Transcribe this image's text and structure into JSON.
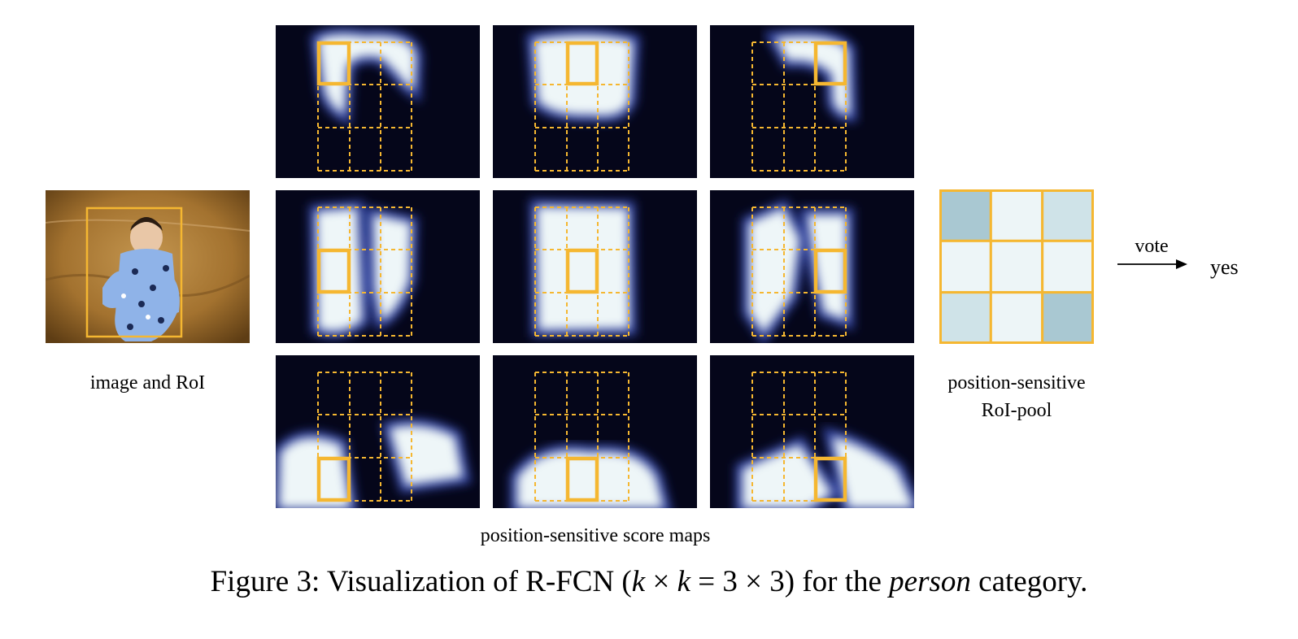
{
  "figure": {
    "caption_prefix": "Figure 3: Visualization of R-FCN (",
    "caption_k1": "k",
    "caption_times1": " × ",
    "caption_k2": "k",
    "caption_eq": " = 3 × 3) for the ",
    "caption_person": "person",
    "caption_suffix": " category."
  },
  "labels": {
    "image_and_roi": "image and RoI",
    "pool_line1": "position-sensitive",
    "pool_line2": "RoI-pool",
    "score_maps": "position-sensitive score maps",
    "vote": "vote",
    "result": "yes"
  },
  "colors": {
    "roi_box": "#f5b731",
    "map_dark": "#05061a",
    "map_bright": "#eef6f8",
    "map_mid": "#2e3f9a",
    "pool_dark_cell": "#a9c8d2",
    "pool_mid_cell": "#cfe3e8",
    "pool_light_cell": "#edf5f7"
  },
  "score_maps": [
    {
      "row": 0,
      "col": 0,
      "highlight_cell": [
        0,
        0
      ]
    },
    {
      "row": 0,
      "col": 1,
      "highlight_cell": [
        0,
        1
      ]
    },
    {
      "row": 0,
      "col": 2,
      "highlight_cell": [
        0,
        2
      ]
    },
    {
      "row": 1,
      "col": 0,
      "highlight_cell": [
        1,
        0
      ]
    },
    {
      "row": 1,
      "col": 1,
      "highlight_cell": [
        1,
        1
      ]
    },
    {
      "row": 1,
      "col": 2,
      "highlight_cell": [
        1,
        2
      ]
    },
    {
      "row": 2,
      "col": 0,
      "highlight_cell": [
        2,
        0
      ]
    },
    {
      "row": 2,
      "col": 1,
      "highlight_cell": [
        2,
        1
      ]
    },
    {
      "row": 2,
      "col": 2,
      "highlight_cell": [
        2,
        2
      ]
    }
  ],
  "pooled_grid": {
    "cells": [
      [
        "dark",
        "light",
        "mid"
      ],
      [
        "light",
        "light",
        "light"
      ],
      [
        "mid",
        "light",
        "dark"
      ]
    ]
  }
}
